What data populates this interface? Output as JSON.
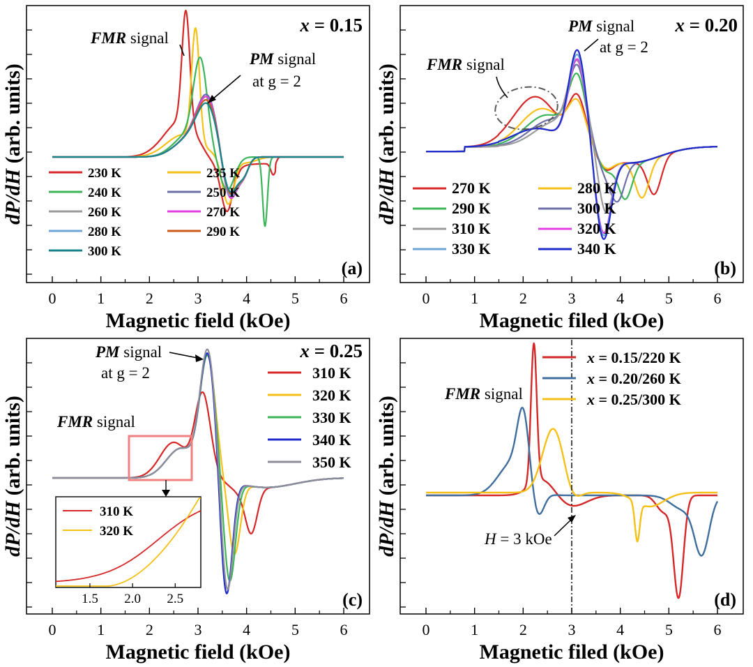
{
  "figure": {
    "panels": [
      {
        "id": "a",
        "panel_label": "(a)",
        "composition_label": "x = 0.15",
        "composition_var": "x",
        "composition_val": " = 0.15",
        "xlabel": "Magnetic field (kOe)",
        "ylabel": "dP/dH (arb. units)",
        "annotations": [
          {
            "em": "FMR",
            "rest": " signal"
          },
          {
            "em": "PM",
            "rest": " signal",
            "line2": "at g = 2"
          }
        ]
      },
      {
        "id": "b",
        "panel_label": "(b)",
        "composition_label": "x = 0.20",
        "composition_var": "x",
        "composition_val": " = 0.20",
        "xlabel": "Magnetic filed (kOe)",
        "ylabel": "dP/dH (arb. units)",
        "annotations": [
          {
            "em": "FMR",
            "rest": " signal"
          },
          {
            "em": "PM",
            "rest": " signal",
            "line2": "at g = 2"
          }
        ]
      },
      {
        "id": "c",
        "panel_label": "(c)",
        "composition_label": "x = 0.25",
        "composition_var": "x",
        "composition_val": " = 0.25",
        "xlabel": "Magnetic field (kOe)",
        "ylabel": "dP/dH (arb. units)",
        "annotations": [
          {
            "em": "FMR",
            "rest": " signal"
          },
          {
            "em": "PM",
            "rest": " signal",
            "line2": "at g = 2"
          }
        ],
        "inset": {
          "legend": [
            "310 K",
            "320 K"
          ],
          "xticks": [
            "1.5",
            "2.0",
            "2.5"
          ]
        }
      },
      {
        "id": "d",
        "panel_label": "(d)",
        "xlabel": "Magnetic filed (kOe)",
        "ylabel": "dP/dH (arb. units)",
        "annotations": [
          {
            "em": "FMR",
            "rest": " signal"
          },
          {
            "em": "H",
            "rest": " = 3 kOe"
          }
        ]
      }
    ]
  },
  "chart_data": [
    {
      "type": "line",
      "panel": "a",
      "x_range": [
        0,
        6
      ],
      "xticks": [
        "0",
        "1",
        "2",
        "3",
        "4",
        "5",
        "6"
      ],
      "xlabel": "Magnetic field (kOe)",
      "ylabel": "dP/dH (arb. units)",
      "legend_position": "bottom-left",
      "series": [
        {
          "name": "230 K",
          "color": "#d62728",
          "peak_x": 2.75,
          "peak": 1.0,
          "trough_x": 3.62,
          "trough": -0.4,
          "fmr_x": 4.55
        },
        {
          "name": "235 K",
          "color": "#f5c018",
          "peak_x": 2.95,
          "peak": 1.0,
          "trough_x": 3.62,
          "trough": -0.4
        },
        {
          "name": "240 K",
          "color": "#3cb45a",
          "peak_x": 3.05,
          "peak": 0.75,
          "trough_x": 4.38,
          "trough": -0.62
        },
        {
          "name": "250 K",
          "color": "#6e6ea8",
          "peak_x": 3.15,
          "peak": 0.5,
          "trough_x": 3.68,
          "trough": -0.42
        },
        {
          "name": "260 K",
          "color": "#9a9a9a",
          "peak_x": 3.2,
          "peak": 0.48,
          "trough_x": 3.68,
          "trough": -0.42
        },
        {
          "name": "270 K",
          "color": "#e040e0",
          "peak_x": 3.2,
          "peak": 0.48,
          "trough_x": 3.68,
          "trough": -0.42
        },
        {
          "name": "280 K",
          "color": "#6fa5d6",
          "peak_x": 3.2,
          "peak": 0.45,
          "trough_x": 3.65,
          "trough": -0.4
        },
        {
          "name": "290 K",
          "color": "#cc5a1a",
          "peak_x": 3.2,
          "peak": 0.45,
          "trough_x": 3.65,
          "trough": -0.38
        },
        {
          "name": "300 K",
          "color": "#17848c",
          "peak_x": 3.2,
          "peak": 0.42,
          "trough_x": 3.65,
          "trough": -0.36
        }
      ]
    },
    {
      "type": "line",
      "panel": "b",
      "x_range": [
        0,
        6
      ],
      "xticks": [
        "0",
        "1",
        "2",
        "3",
        "4",
        "5",
        "6"
      ],
      "xlabel": "Magnetic filed (kOe)",
      "ylabel": "dP/dH (arb. units)",
      "legend_position": "bottom-left",
      "series": [
        {
          "name": "270 K",
          "color": "#d62728",
          "fmr_peak_x": 2.25,
          "pm_peak_x": 3.1,
          "trough_x": 4.7,
          "trough": -0.45
        },
        {
          "name": "280 K",
          "color": "#f5c018",
          "fmr_peak_x": 2.4,
          "pm_peak_x": 3.1,
          "trough_x": 4.45,
          "trough": -0.4
        },
        {
          "name": "290 K",
          "color": "#3cb45a",
          "fmr_peak_x": 2.5,
          "pm_peak_x": 3.1,
          "trough_x": 4.1,
          "trough": -0.5
        },
        {
          "name": "300 K",
          "color": "#6e6ea8",
          "fmr_peak_x": 2.6,
          "pm_peak_x": 3.12,
          "trough_x": 3.95,
          "trough": -0.6
        },
        {
          "name": "310 K",
          "color": "#9a9a9a",
          "fmr_peak_x": 2.7,
          "pm_peak_x": 3.12,
          "trough_x": 3.7,
          "trough": -0.75
        },
        {
          "name": "320 K",
          "color": "#e040e0",
          "pm_peak_x": 3.12,
          "trough_x": 3.65,
          "trough": -0.85
        },
        {
          "name": "330 K",
          "color": "#6fa5d6",
          "pm_peak_x": 3.12,
          "trough_x": 3.65,
          "trough": -0.88
        },
        {
          "name": "340 K",
          "color": "#1f2bc8",
          "pm_peak_x": 3.12,
          "trough_x": 3.65,
          "trough": -0.92
        }
      ]
    },
    {
      "type": "line",
      "panel": "c",
      "x_range": [
        0,
        6
      ],
      "xticks": [
        "0",
        "1",
        "2",
        "3",
        "4",
        "5",
        "6"
      ],
      "xlabel": "Magnetic field (kOe)",
      "ylabel": "dP/dH (arb. units)",
      "legend_position": "top-right",
      "series": [
        {
          "name": "310 K",
          "color": "#d62728",
          "pm_peak_x": 3.1,
          "trough_x": 4.1,
          "trough": -0.35
        },
        {
          "name": "320 K",
          "color": "#f5c018",
          "pm_peak_x": 3.2,
          "trough_x": 3.75,
          "trough": -0.6
        },
        {
          "name": "330 K",
          "color": "#3cb45a",
          "pm_peak_x": 3.2,
          "trough_x": 3.65,
          "trough": -0.85
        },
        {
          "name": "340 K",
          "color": "#1f2bc8",
          "pm_peak_x": 3.2,
          "trough_x": 3.58,
          "trough": -1.0
        },
        {
          "name": "350 K",
          "color": "#8c8c9a",
          "pm_peak_x": 3.2,
          "trough_x": 3.6,
          "trough": -0.95
        }
      ]
    },
    {
      "type": "line",
      "panel": "d",
      "x_range": [
        0,
        6
      ],
      "xticks": [
        "0",
        "1",
        "2",
        "3",
        "4",
        "5",
        "6"
      ],
      "xlabel": "Magnetic filed (kOe)",
      "ylabel": "dP/dH (arb. units)",
      "legend_position": "top-right",
      "vline_x": 3,
      "series": [
        {
          "name": "x = 0.15/220 K",
          "name_var": "x",
          "name_rest": " = 0.15/220 K",
          "color": "#d62728",
          "peak_x": 2.22,
          "trough_x": 5.2
        },
        {
          "name": "x = 0.20/260 K",
          "name_var": "x",
          "name_rest": " = 0.20/260 K",
          "color": "#3f6e9e",
          "peak_x": 2.0,
          "trough_x": 5.68
        },
        {
          "name": "x = 0.25/300 K",
          "name_var": "x",
          "name_rest": " = 0.25/300 K",
          "color": "#f5c018",
          "peak_x": 2.62,
          "trough_x": 4.35
        }
      ]
    }
  ]
}
